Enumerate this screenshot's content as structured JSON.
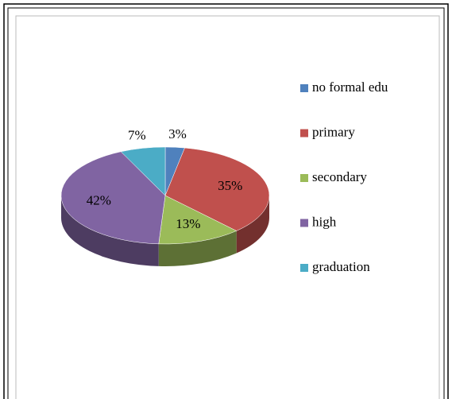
{
  "chart_data": {
    "type": "pie3d",
    "categories": [
      "no formal edu",
      "primary",
      "secondary",
      "high",
      "graduation"
    ],
    "values": [
      3,
      35,
      13,
      42,
      7
    ],
    "value_labels": [
      "3%",
      "35%",
      "13%",
      "42%",
      "7%"
    ],
    "colors": [
      "#4f81bd",
      "#c0504d",
      "#9bbb59",
      "#8064a2",
      "#4bacc6"
    ],
    "legend": "right"
  }
}
